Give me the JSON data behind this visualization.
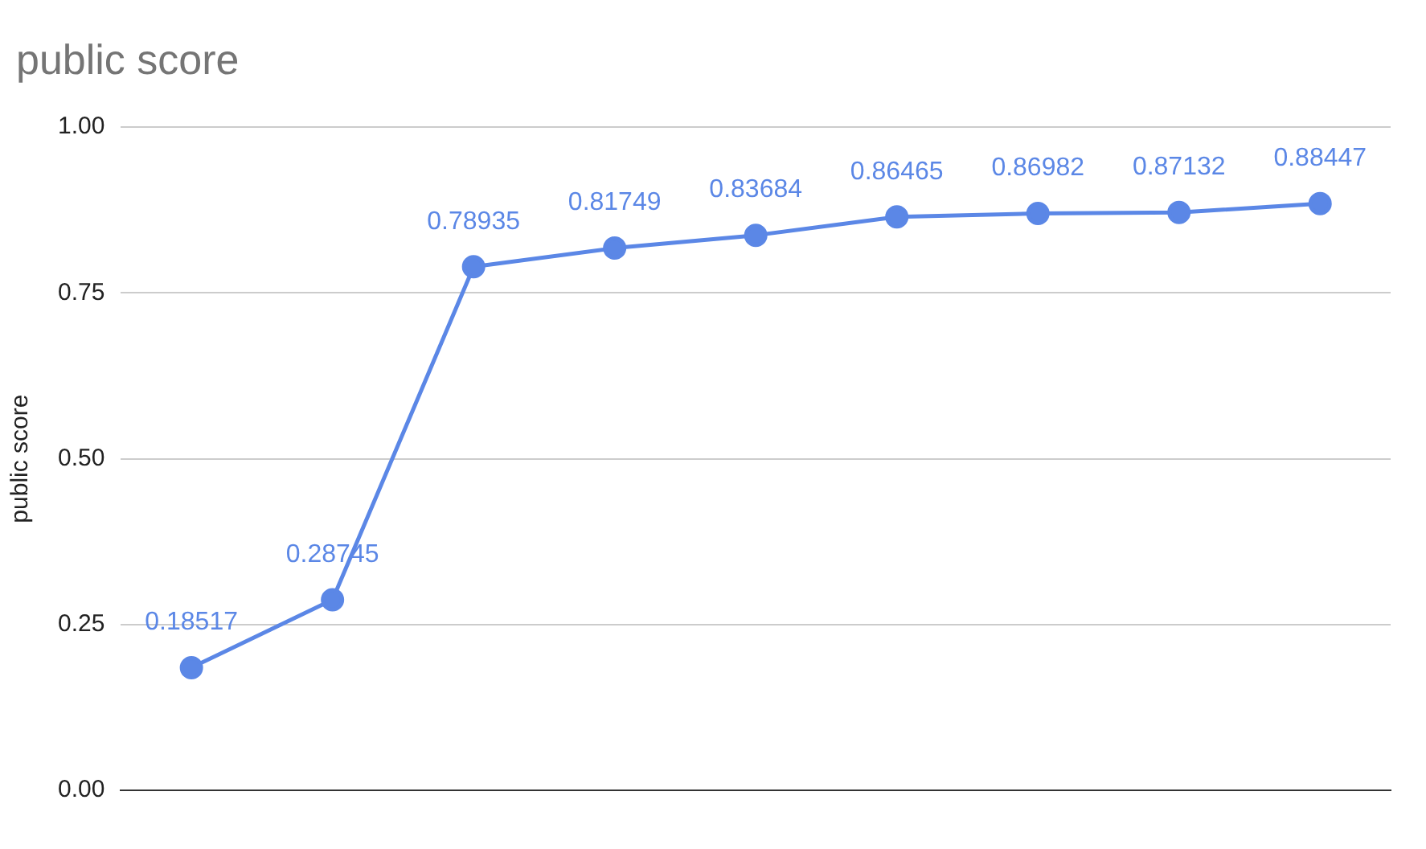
{
  "chart_data": {
    "type": "line",
    "title": "public score",
    "ylabel": "public score",
    "categories": [
      null,
      null,
      null,
      null,
      null,
      null,
      null,
      null,
      null
    ],
    "series": [
      {
        "color": "#5b87e6",
        "values": [
          0.18517,
          0.28745,
          0.78935,
          0.81749,
          0.83684,
          0.86465,
          0.86982,
          0.87132,
          0.88447
        ]
      }
    ],
    "ylim": [
      0,
      1
    ],
    "yticks": [
      {
        "value": 0,
        "label": "0.00"
      },
      {
        "value": 0.25,
        "label": "0.25"
      },
      {
        "value": 0.5,
        "label": "0.50"
      },
      {
        "value": 0.75,
        "label": "0.75"
      },
      {
        "value": 1,
        "label": "1.00"
      }
    ],
    "grid": "y",
    "marker": "circle",
    "line_style": "solid",
    "data_labels": true,
    "legend": false
  }
}
